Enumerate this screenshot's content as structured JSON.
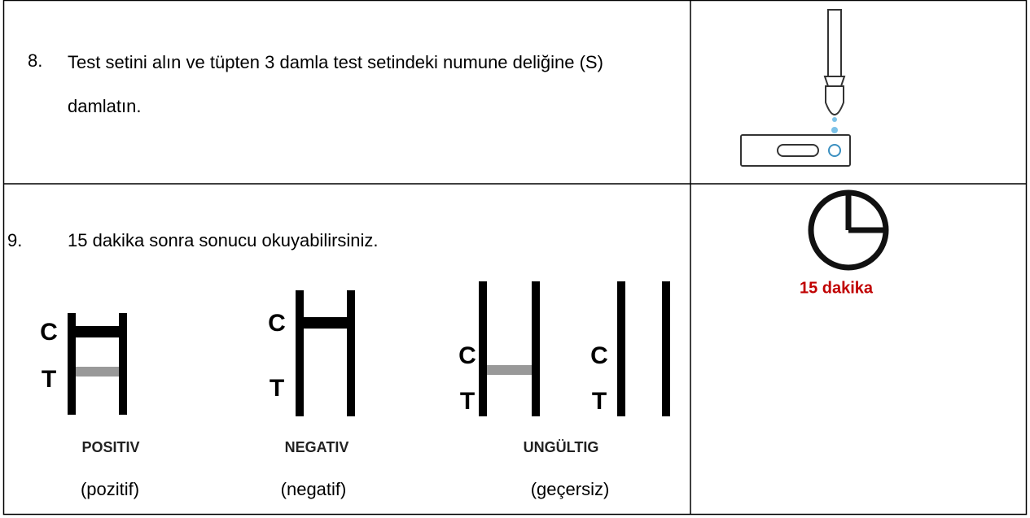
{
  "steps": [
    {
      "number": "8.",
      "text": "Test setini alın ve tüpten 3 damla test setindeki numune deliğine (S) damlatın."
    },
    {
      "number": "9.",
      "text": "15 dakika sonra sonucu okuyabilirsiniz."
    }
  ],
  "timer_label": "15 dakika",
  "results": [
    {
      "label": "POSITIV",
      "translation": "(pozitif)",
      "strips": [
        {
          "c": "C",
          "t": "T"
        }
      ]
    },
    {
      "label": "NEGATIV",
      "translation": "(negatif)",
      "strips": [
        {
          "c": "C",
          "t": "T"
        }
      ]
    },
    {
      "label": "UNGÜLTIG",
      "translation": "(geçersiz)",
      "strips": [
        {
          "c": "C",
          "t": "T"
        },
        {
          "c": "C",
          "t": "T"
        }
      ]
    }
  ]
}
